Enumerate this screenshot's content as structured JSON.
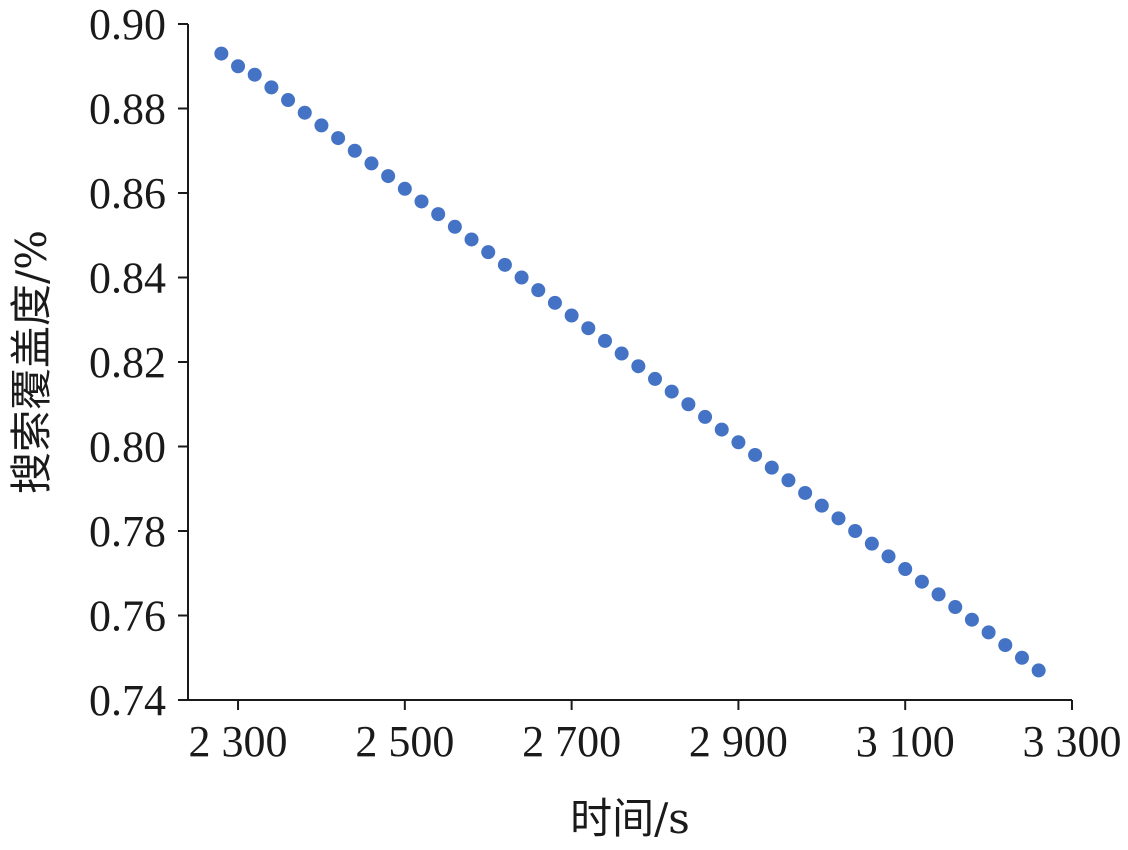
{
  "chart_data": {
    "type": "scatter",
    "title": "",
    "xlabel": "时间/s",
    "ylabel": "搜索覆盖度/%",
    "xlim": [
      2240,
      3300
    ],
    "ylim": [
      0.74,
      0.9
    ],
    "x_ticks": [
      2300,
      2500,
      2700,
      2900,
      3100,
      3300
    ],
    "x_tick_labels": [
      "2 300",
      "2 500",
      "2 700",
      "2 900",
      "3 100",
      "3 300"
    ],
    "y_ticks": [
      0.74,
      0.76,
      0.78,
      0.8,
      0.82,
      0.84,
      0.86,
      0.88,
      0.9
    ],
    "y_tick_labels": [
      "0.74",
      "0.76",
      "0.78",
      "0.80",
      "0.82",
      "0.84",
      "0.86",
      "0.88",
      "0.90"
    ],
    "grid": false,
    "legend": "none",
    "marker_color": "#4472C4",
    "series": [
      {
        "x": [
          2280,
          2300,
          2320,
          2340,
          2360,
          2380,
          2400,
          2420,
          2440,
          2460,
          2480,
          2500,
          2520,
          2540,
          2560,
          2580,
          2600,
          2620,
          2640,
          2660,
          2680,
          2700,
          2720,
          2740,
          2760,
          2780,
          2800,
          2820,
          2840,
          2860,
          2880,
          2900,
          2920,
          2940,
          2960,
          2980,
          3000,
          3020,
          3040,
          3060,
          3080,
          3100,
          3120,
          3140,
          3160,
          3180,
          3200,
          3220,
          3240,
          3260
        ],
        "values": [
          0.893,
          0.89,
          0.888,
          0.885,
          0.882,
          0.879,
          0.876,
          0.873,
          0.87,
          0.867,
          0.864,
          0.861,
          0.858,
          0.855,
          0.852,
          0.849,
          0.846,
          0.843,
          0.84,
          0.837,
          0.834,
          0.831,
          0.828,
          0.825,
          0.822,
          0.819,
          0.816,
          0.813,
          0.81,
          0.807,
          0.804,
          0.801,
          0.798,
          0.795,
          0.792,
          0.789,
          0.786,
          0.783,
          0.78,
          0.777,
          0.774,
          0.771,
          0.768,
          0.765,
          0.762,
          0.759,
          0.756,
          0.753,
          0.75,
          0.747
        ]
      }
    ]
  }
}
